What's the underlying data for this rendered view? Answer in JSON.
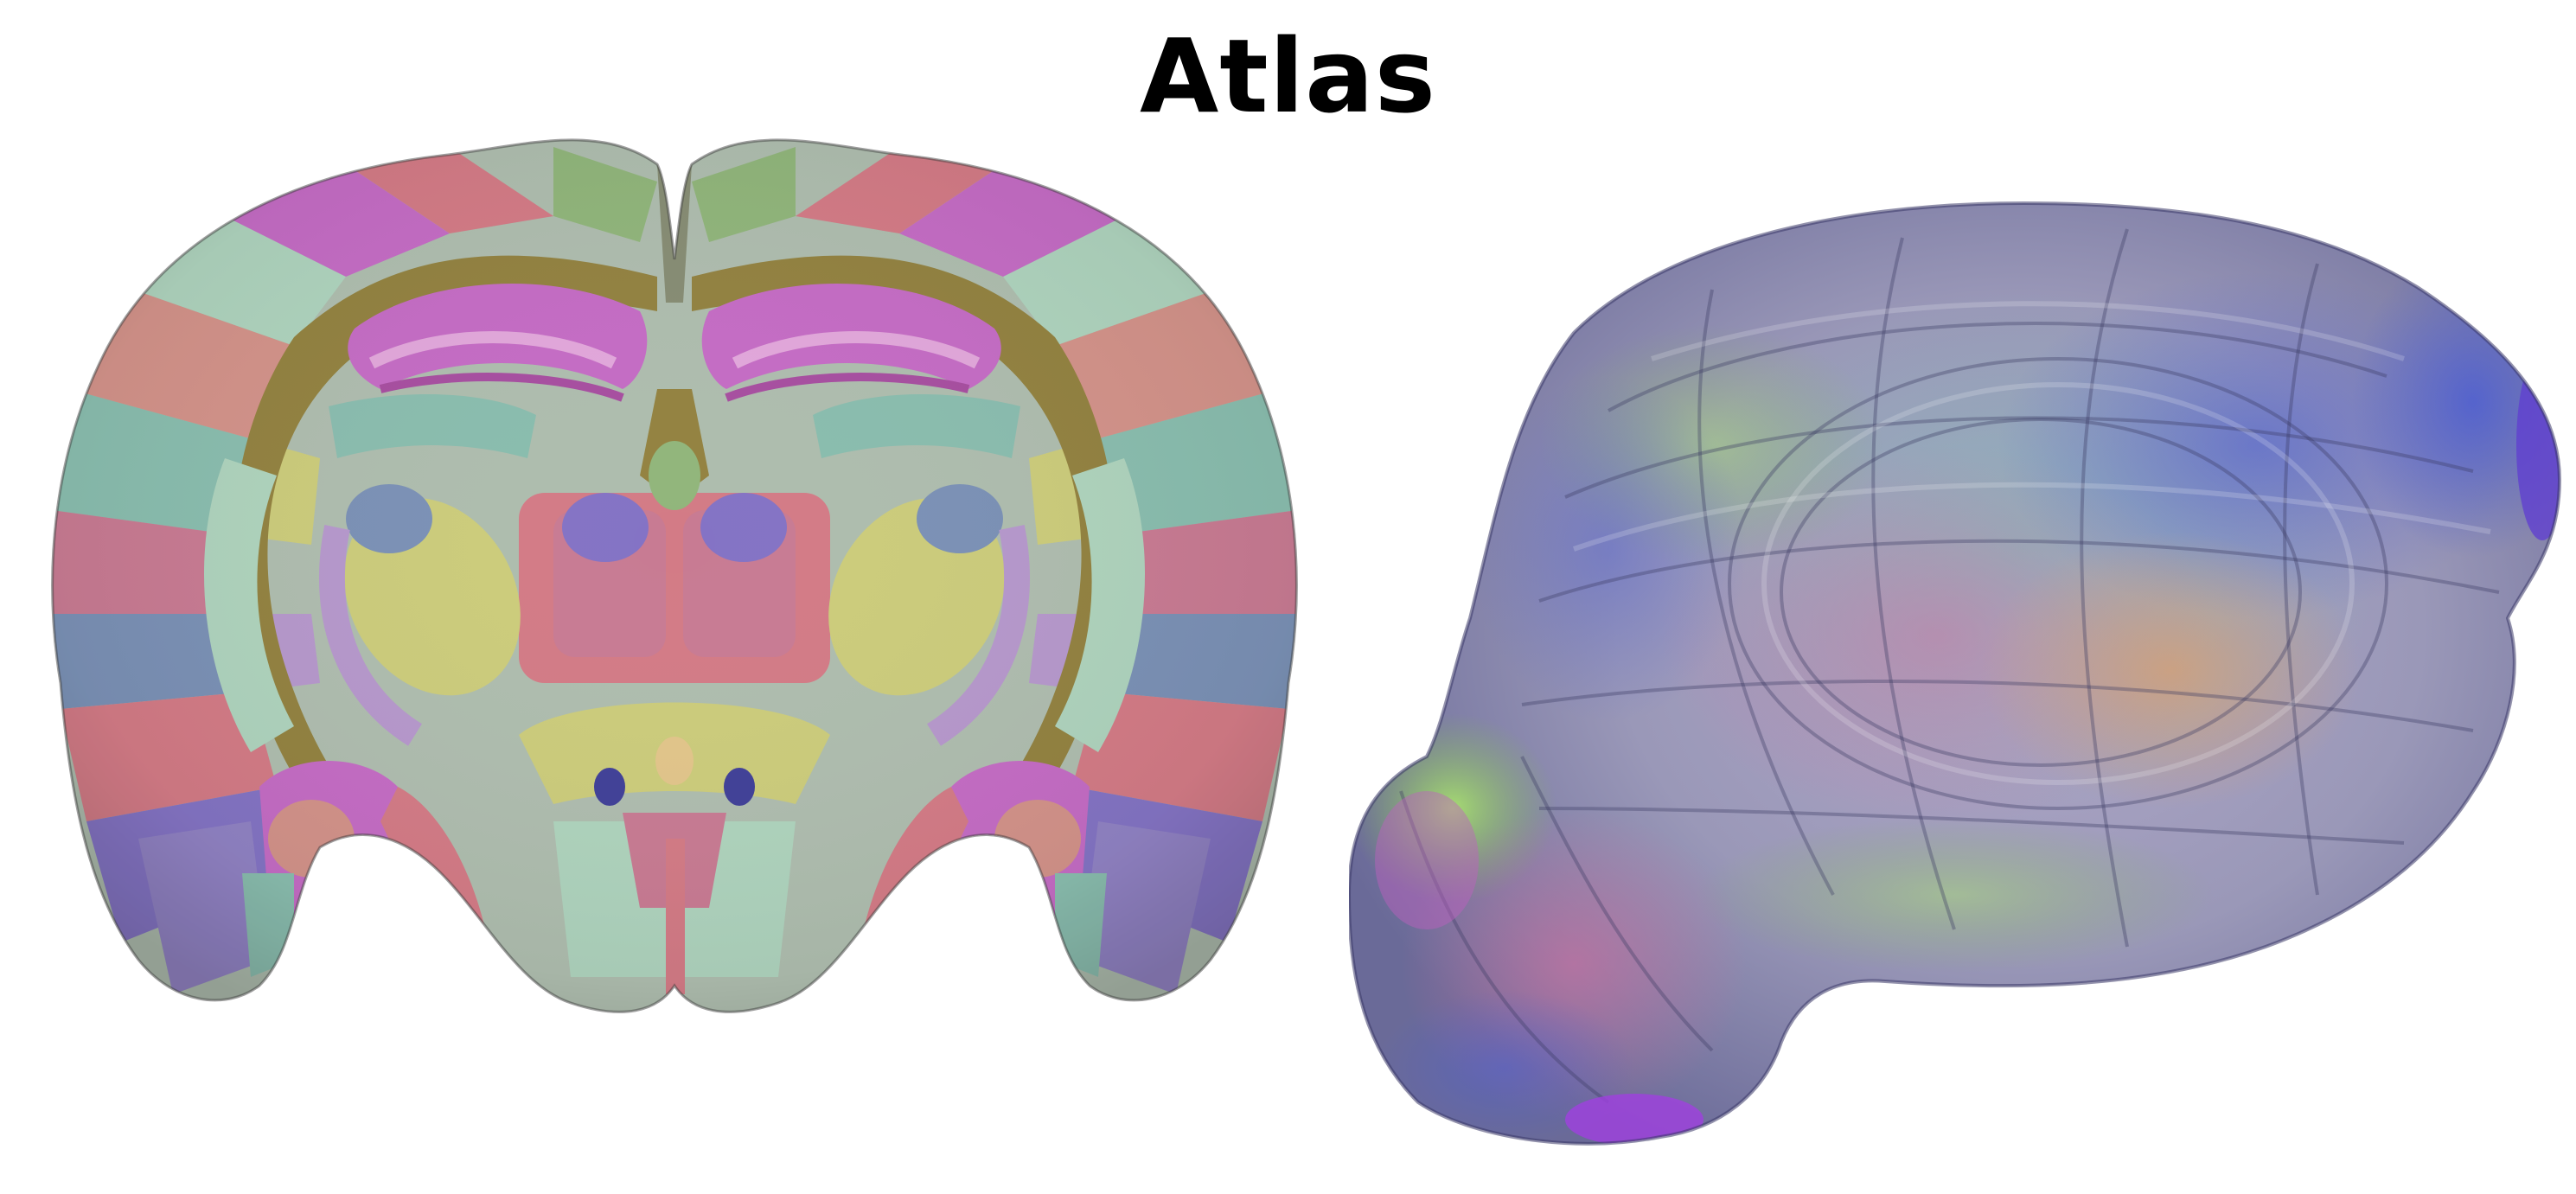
{
  "figure": {
    "title": "Atlas"
  },
  "panels": [
    {
      "view": "coronal-slice",
      "icon": "brain-coronal-section-icon"
    },
    {
      "view": "3d-volume",
      "icon": "brain-3d-volume-icon"
    }
  ],
  "colors": {
    "background": "#ffffff",
    "title": "#000000",
    "pink": "#c4708a",
    "magenta": "#c060c0",
    "rose": "#d0707c",
    "violet": "#7a68c0",
    "blue_grey": "#7088b0",
    "teal": "#80b8a8",
    "mint": "#a8d0b8",
    "green": "#88b070",
    "olive": "#8a7830",
    "yellow": "#c8c870",
    "lavender": "#b090c8",
    "navy": "#303090"
  }
}
